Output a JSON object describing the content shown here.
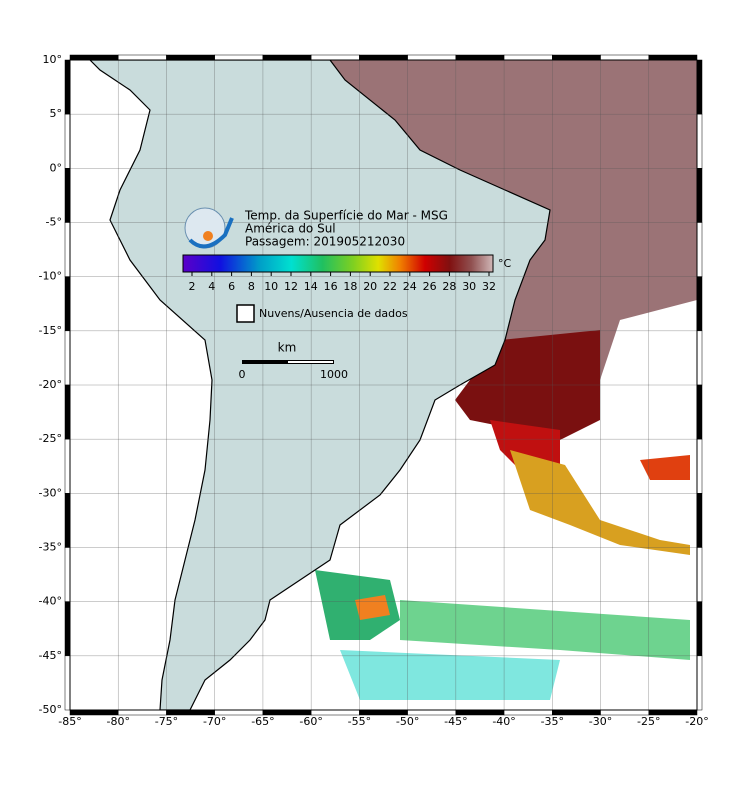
{
  "map": {
    "title": "Temp. da Superfície do Mar - MSG",
    "subtitle": "América do Sul",
    "pass": "Passagem: 201905212030",
    "colorbar": {
      "unit": "°C",
      "ticks": [
        2,
        4,
        6,
        8,
        10,
        12,
        14,
        16,
        18,
        20,
        22,
        24,
        26,
        28,
        30,
        32
      ]
    },
    "nodata": "Nuvens/Ausencia de dados",
    "scale": {
      "unit": "km",
      "ticks": [
        0,
        1000
      ]
    },
    "lat_ticks": [
      {
        "value": 10,
        "label": "10°"
      },
      {
        "value": 5,
        "label": "5°"
      },
      {
        "value": 0,
        "label": "0°"
      },
      {
        "value": -5,
        "label": "-5°"
      },
      {
        "value": -10,
        "label": "-10°"
      },
      {
        "value": -15,
        "label": "-15°"
      },
      {
        "value": -20,
        "label": "-20°"
      },
      {
        "value": -25,
        "label": "-25°"
      },
      {
        "value": -30,
        "label": "-30°"
      },
      {
        "value": -35,
        "label": "-35°"
      },
      {
        "value": -40,
        "label": "-40°"
      },
      {
        "value": -45,
        "label": "-45°"
      },
      {
        "value": -50,
        "label": "-50°"
      }
    ],
    "lon_ticks": [
      {
        "value": -85,
        "label": "-85°"
      },
      {
        "value": -80,
        "label": "-80°"
      },
      {
        "value": -75,
        "label": "-75°"
      },
      {
        "value": -70,
        "label": "-70°"
      },
      {
        "value": -65,
        "label": "-65°"
      },
      {
        "value": -60,
        "label": "-60°"
      },
      {
        "value": -55,
        "label": "-55°"
      },
      {
        "value": -50,
        "label": "-50°"
      },
      {
        "value": -45,
        "label": "-45°"
      },
      {
        "value": -40,
        "label": "-40°"
      },
      {
        "value": -35,
        "label": "-35°"
      },
      {
        "value": -30,
        "label": "-30°"
      },
      {
        "value": -25,
        "label": "-25°"
      },
      {
        "value": -20,
        "label": "-20°"
      }
    ]
  }
}
